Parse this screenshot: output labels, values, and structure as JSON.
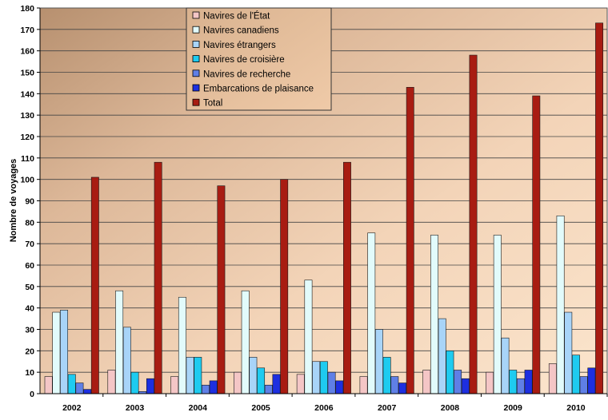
{
  "chart_data": {
    "type": "bar",
    "title": "",
    "xlabel": "",
    "ylabel": "Nombre de voyages",
    "ylim": [
      0,
      180
    ],
    "ytick_step": 10,
    "grid": true,
    "legend_position": "top-center",
    "categories": [
      "2002",
      "2003",
      "2004",
      "2005",
      "2006",
      "2007",
      "2008",
      "2009",
      "2010"
    ],
    "series": [
      {
        "name": "Navires de l'État",
        "color": "#f4c6c6",
        "values": [
          8,
          11,
          8,
          10,
          9,
          8,
          11,
          10,
          14
        ]
      },
      {
        "name": "Navires canadiens",
        "color": "#e2fbfb",
        "values": [
          38,
          48,
          45,
          48,
          53,
          75,
          74,
          74,
          83
        ]
      },
      {
        "name": "Navires étrangers",
        "color": "#a8d4f8",
        "values": [
          39,
          31,
          17,
          17,
          15,
          30,
          35,
          26,
          38
        ]
      },
      {
        "name": "Navires de croisière",
        "color": "#1ecbf0",
        "values": [
          9,
          10,
          17,
          12,
          15,
          17,
          20,
          11,
          18
        ]
      },
      {
        "name": "Navires de recherche",
        "color": "#5f7fe6",
        "values": [
          5,
          1,
          4,
          4,
          10,
          8,
          11,
          7,
          8
        ]
      },
      {
        "name": "Embarcations de plaisance",
        "color": "#1d2fe0",
        "values": [
          2,
          7,
          6,
          9,
          6,
          5,
          7,
          11,
          12
        ]
      },
      {
        "name": "Total",
        "color": "#a81c12",
        "values": [
          101,
          108,
          97,
          100,
          108,
          143,
          158,
          139,
          173
        ]
      }
    ]
  }
}
